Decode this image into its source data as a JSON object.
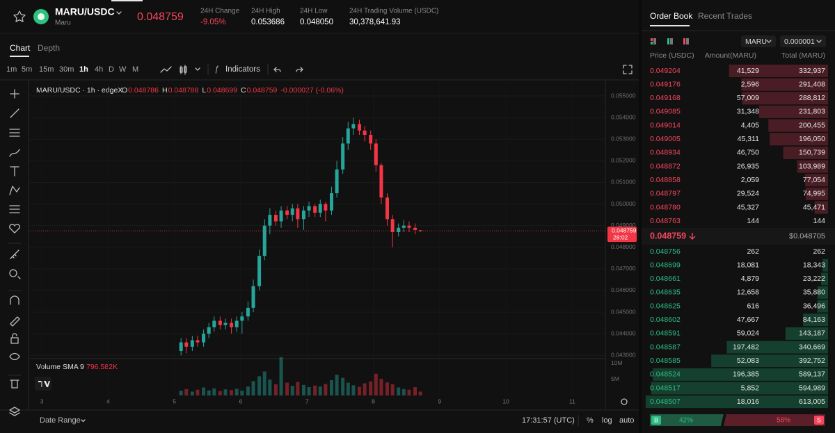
{
  "header": {
    "pair": "MARU/USDC",
    "name": "Maru",
    "price": "0.048759",
    "stats": [
      {
        "label": "24H Change",
        "value": "-9.05%"
      },
      {
        "label": "24H High",
        "value": "0.053686"
      },
      {
        "label": "24H Low",
        "value": "0.048050"
      },
      {
        "label": "24H Trading Volume (USDC)",
        "value": "30,378,641.93"
      }
    ]
  },
  "chart_tabs": [
    "Chart",
    "Depth"
  ],
  "intervals": [
    "1m",
    "5m",
    "15m",
    "30m",
    "1h",
    "4h",
    "D",
    "W",
    "M"
  ],
  "active_interval_index": 4,
  "indicators_button": "Indicators",
  "chart_data": {
    "type": "candlestick",
    "title": "MARU/USDC · 1h · edgeX",
    "legend": [
      {
        "key": "O",
        "value": "0.048786"
      },
      {
        "key": "H",
        "value": "0.048788"
      },
      {
        "key": "L",
        "value": "0.048699"
      },
      {
        "key": "C",
        "value": "0.048759"
      }
    ],
    "change": "-0.000027 (-0.06%)",
    "volume_label": "Volume SMA 9",
    "volume_sma": "796.582K",
    "last_price_label": "0.048759",
    "countdown": "28:02",
    "up_color": "#26a69a",
    "down_color": "#f23645",
    "x": [
      5.1,
      5.18,
      5.27,
      5.35,
      5.44,
      5.52,
      5.6,
      5.69,
      5.77,
      5.86,
      5.94,
      6.02,
      6.11,
      6.19,
      6.28,
      6.36,
      6.44,
      6.53,
      6.61,
      6.7,
      6.78,
      6.86,
      6.95,
      7.03,
      7.12,
      7.2,
      7.28,
      7.37,
      7.45,
      7.54,
      7.62,
      7.7,
      7.79,
      7.87,
      7.96,
      8.04,
      8.12,
      8.21,
      8.29,
      8.38,
      8.46,
      8.54,
      8.63,
      8.71
    ],
    "open": [
      0.0432,
      0.0436,
      0.0434,
      0.0437,
      0.0436,
      0.044,
      0.0443,
      0.0446,
      0.0444,
      0.0445,
      0.0443,
      0.0446,
      0.0448,
      0.0452,
      0.0462,
      0.0476,
      0.049,
      0.0495,
      0.0492,
      0.0497,
      0.0495,
      0.0498,
      0.0493,
      0.0497,
      0.0499,
      0.0496,
      0.05,
      0.0497,
      0.0505,
      0.0516,
      0.0528,
      0.0535,
      0.0537,
      0.0534,
      0.0532,
      0.0528,
      0.0518,
      0.0503,
      0.0493,
      0.0487,
      0.0489,
      0.049,
      0.0489,
      0.048786
    ],
    "high": [
      0.0438,
      0.0438,
      0.0439,
      0.0439,
      0.0442,
      0.0445,
      0.0448,
      0.0448,
      0.0447,
      0.0447,
      0.0448,
      0.045,
      0.0455,
      0.0465,
      0.0479,
      0.0493,
      0.0498,
      0.0497,
      0.0499,
      0.0499,
      0.05,
      0.05,
      0.0499,
      0.0501,
      0.05,
      0.0502,
      0.0501,
      0.0508,
      0.052,
      0.0531,
      0.0538,
      0.054,
      0.0539,
      0.0536,
      0.0534,
      0.053,
      0.0519,
      0.0505,
      0.0495,
      0.0491,
      0.04925,
      0.0492,
      0.0491,
      0.048788
    ],
    "low": [
      0.043,
      0.0431,
      0.0432,
      0.0434,
      0.0434,
      0.0438,
      0.0441,
      0.0442,
      0.0442,
      0.044,
      0.0441,
      0.044,
      0.0446,
      0.045,
      0.046,
      0.0474,
      0.0486,
      0.049,
      0.0489,
      0.0493,
      0.0492,
      0.0489,
      0.0488,
      0.0494,
      0.0494,
      0.0494,
      0.0492,
      0.0495,
      0.0503,
      0.0514,
      0.0525,
      0.0532,
      0.0532,
      0.0529,
      0.0525,
      0.0515,
      0.05,
      0.049,
      0.048,
      0.0485,
      0.0487,
      0.0487,
      0.0486,
      0.048699
    ],
    "close": [
      0.0436,
      0.0434,
      0.0437,
      0.0436,
      0.044,
      0.0443,
      0.0446,
      0.0444,
      0.0445,
      0.0443,
      0.0446,
      0.0448,
      0.0452,
      0.0462,
      0.0476,
      0.049,
      0.0495,
      0.0492,
      0.0497,
      0.0495,
      0.0498,
      0.0493,
      0.0497,
      0.0499,
      0.0496,
      0.05,
      0.0497,
      0.0505,
      0.0516,
      0.0528,
      0.0535,
      0.0537,
      0.0534,
      0.0532,
      0.0528,
      0.0518,
      0.0503,
      0.0493,
      0.0487,
      0.0489,
      0.049,
      0.0489,
      0.0488,
      0.048759
    ],
    "volume": [
      1500000,
      2000000,
      1200000,
      1800000,
      2500000,
      1600000,
      2200000,
      1400000,
      1900000,
      1700000,
      2100000,
      1500000,
      2800000,
      4500000,
      6000000,
      7500000,
      5000000,
      3500000,
      12000000,
      4000000,
      3000000,
      4200000,
      3300000,
      2600000,
      3100000,
      2800000,
      3600000,
      4800000,
      6500000,
      5500000,
      4000000,
      3200000,
      2700000,
      3800000,
      4400000,
      6800000,
      5200000,
      4100000,
      3500000,
      2500000,
      2000000,
      1800000,
      2600000,
      1200000
    ],
    "xlim": [
      2.8,
      11.5
    ],
    "xticks": [
      3,
      4,
      5,
      6,
      7,
      8,
      9,
      10,
      11
    ],
    "ylim": [
      0.04288,
      0.05558
    ],
    "yticks": [
      {
        "value": 0.043,
        "label": "0.043000"
      },
      {
        "value": 0.044,
        "label": "0.044000"
      },
      {
        "value": 0.045,
        "label": "0.045000"
      },
      {
        "value": 0.046,
        "label": "0.046000"
      },
      {
        "value": 0.047,
        "label": "0.047000"
      },
      {
        "value": 0.048,
        "label": "0.048000"
      },
      {
        "value": 0.049,
        "label": "0.049000"
      },
      {
        "value": 0.05,
        "label": "0.050000"
      },
      {
        "value": 0.051,
        "label": "0.051000"
      },
      {
        "value": 0.052,
        "label": "0.052000"
      },
      {
        "value": 0.053,
        "label": "0.053000"
      },
      {
        "value": 0.054,
        "label": "0.054000"
      },
      {
        "value": 0.055,
        "label": "0.055000"
      }
    ],
    "volume_ylim": [
      0,
      11300000
    ],
    "volume_yticks": [
      {
        "value": 5000000,
        "label": "5M"
      },
      {
        "value": 10000000,
        "label": "10M"
      }
    ]
  },
  "footer": {
    "date_range": "Date Range",
    "time": "17:31:57 (UTC)",
    "percent": "%",
    "log": "log",
    "auto": "auto"
  },
  "order_book": {
    "tabs": [
      "Order Book",
      "Recent Trades"
    ],
    "asset": "MARU",
    "precision": "0.000001",
    "columns": [
      "Price (USDC)",
      "Amount(MARU)",
      "Total (MARU)"
    ],
    "asks": [
      {
        "price": "0.049204",
        "amount": "41,529",
        "total": {
          "value": 332937,
          "label": "332,937"
        }
      },
      {
        "price": "0.049176",
        "amount": "2,596",
        "total": {
          "value": 291408,
          "label": "291,408"
        }
      },
      {
        "price": "0.049168",
        "amount": "57,009",
        "total": {
          "value": 288812,
          "label": "288,812"
        }
      },
      {
        "price": "0.049085",
        "amount": "31,348",
        "total": {
          "value": 231803,
          "label": "231,803"
        }
      },
      {
        "price": "0.049014",
        "amount": "4,405",
        "total": {
          "value": 200455,
          "label": "200,455"
        }
      },
      {
        "price": "0.049005",
        "amount": "45,311",
        "total": {
          "value": 196050,
          "label": "196,050"
        }
      },
      {
        "price": "0.048934",
        "amount": "46,750",
        "total": {
          "value": 150739,
          "label": "150,739"
        }
      },
      {
        "price": "0.048872",
        "amount": "26,935",
        "total": {
          "value": 103989,
          "label": "103,989"
        }
      },
      {
        "price": "0.048858",
        "amount": "2,059",
        "total": {
          "value": 77054,
          "label": "77,054"
        }
      },
      {
        "price": "0.048797",
        "amount": "29,524",
        "total": {
          "value": 74995,
          "label": "74,995"
        }
      },
      {
        "price": "0.048780",
        "amount": "45,327",
        "total": {
          "value": 45471,
          "label": "45,471"
        }
      },
      {
        "price": "0.048763",
        "amount": "144",
        "total": {
          "value": 144,
          "label": "144"
        }
      }
    ],
    "mid_price": "0.048759",
    "mid_usd": "$0.048705",
    "bids": [
      {
        "price": "0.048756",
        "amount": "262",
        "total": {
          "value": 262,
          "label": "262"
        }
      },
      {
        "price": "0.048699",
        "amount": "18,081",
        "total": {
          "value": 18343,
          "label": "18,343"
        }
      },
      {
        "price": "0.048661",
        "amount": "4,879",
        "total": {
          "value": 23222,
          "label": "23,222"
        }
      },
      {
        "price": "0.048635",
        "amount": "12,658",
        "total": {
          "value": 35880,
          "label": "35,880"
        }
      },
      {
        "price": "0.048625",
        "amount": "616",
        "total": {
          "value": 36496,
          "label": "36,496"
        }
      },
      {
        "price": "0.048602",
        "amount": "47,667",
        "total": {
          "value": 84163,
          "label": "84,163"
        }
      },
      {
        "price": "0.048591",
        "amount": "59,024",
        "total": {
          "value": 143187,
          "label": "143,187"
        }
      },
      {
        "price": "0.048587",
        "amount": "197,482",
        "total": {
          "value": 340669,
          "label": "340,669"
        }
      },
      {
        "price": "0.048585",
        "amount": "52,083",
        "total": {
          "value": 392752,
          "label": "392,752"
        }
      },
      {
        "price": "0.048524",
        "amount": "196,385",
        "total": {
          "value": 589137,
          "label": "589,137"
        }
      },
      {
        "price": "0.048517",
        "amount": "5,852",
        "total": {
          "value": 594989,
          "label": "594,989"
        }
      },
      {
        "price": "0.048507",
        "amount": "18,016",
        "total": {
          "value": 613005,
          "label": "613,005"
        }
      }
    ],
    "buy": {
      "label": "B",
      "percent": {
        "value": 42,
        "label": "42%"
      }
    },
    "sell": {
      "label": "S",
      "percent": {
        "value": 58,
        "label": "58%"
      }
    }
  }
}
